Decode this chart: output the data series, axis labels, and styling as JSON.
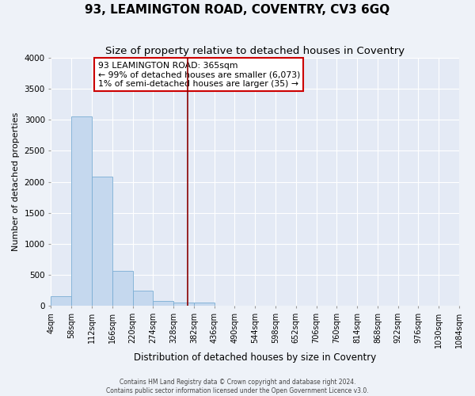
{
  "title": "93, LEAMINGTON ROAD, COVENTRY, CV3 6GQ",
  "subtitle": "Size of property relative to detached houses in Coventry",
  "xlabel": "Distribution of detached houses by size in Coventry",
  "ylabel": "Number of detached properties",
  "bar_edges": [
    4,
    58,
    112,
    166,
    220,
    274,
    328,
    382,
    436,
    490,
    544,
    598,
    652,
    706,
    760,
    814,
    868,
    922,
    976,
    1030,
    1084
  ],
  "bar_heights": [
    150,
    3050,
    2080,
    560,
    240,
    75,
    50,
    50,
    0,
    0,
    0,
    0,
    0,
    0,
    0,
    0,
    0,
    0,
    0,
    0
  ],
  "bar_color": "#c5d8ee",
  "bar_edge_color": "#7aadd4",
  "red_line_x": 365,
  "red_line_color": "#8b0000",
  "ylim": [
    0,
    4000
  ],
  "yticks": [
    0,
    500,
    1000,
    1500,
    2000,
    2500,
    3000,
    3500,
    4000
  ],
  "annotation_title": "93 LEAMINGTON ROAD: 365sqm",
  "annotation_line1": "← 99% of detached houses are smaller (6,073)",
  "annotation_line2": "1% of semi-detached houses are larger (35) →",
  "annotation_box_color": "#cc0000",
  "footer1": "Contains HM Land Registry data © Crown copyright and database right 2024.",
  "footer2": "Contains public sector information licensed under the Open Government Licence v3.0.",
  "bg_color": "#eef2f8",
  "plot_bg_color": "#e4eaf5",
  "grid_color": "#ffffff",
  "title_fontsize": 11,
  "subtitle_fontsize": 9.5,
  "tick_fontsize": 7,
  "ylabel_fontsize": 8,
  "xlabel_fontsize": 8.5,
  "ann_fontsize": 7.8
}
